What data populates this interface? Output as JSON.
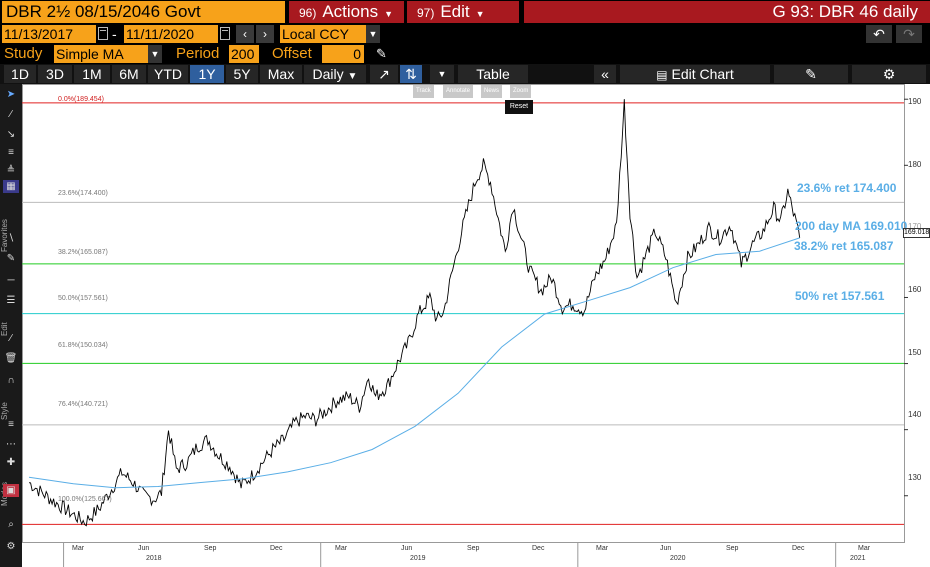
{
  "header": {
    "security": "DBR 2½ 08/15/2046 Govt",
    "actions_num": "96)",
    "actions_label": "Actions",
    "edit_num": "97)",
    "edit_label": "Edit",
    "function_title": "G 93: DBR 46 daily"
  },
  "range": {
    "start_date": "11/13/2017",
    "separator": "-",
    "end_date": "11/11/2020",
    "currency": "Local CCY"
  },
  "study": {
    "study_label": "Study",
    "study_value": "Simple MA",
    "period_label": "Period",
    "period_value": "200",
    "offset_label": "Offset",
    "offset_value": "0"
  },
  "toolbar": {
    "periods": [
      "1D",
      "3D",
      "1M",
      "6M",
      "YTD",
      "1Y",
      "5Y",
      "Max"
    ],
    "active_period": "1Y",
    "frequency": "Daily",
    "table_label": "Table",
    "edit_chart_label": "Edit Chart"
  },
  "chart_tools": {
    "track": "Track",
    "annotate": "Annotate",
    "news": "News",
    "zoom": "Zoom",
    "reset": "Reset"
  },
  "side_labels": {
    "favorites": "Favorites",
    "edit": "Edit",
    "style": "Style",
    "modes": "Modes"
  },
  "chart_data": {
    "type": "line",
    "y_axis_side": "right",
    "ylim": [
      123,
      192
    ],
    "y_ticks": [
      "190",
      "180",
      "170",
      "160",
      "150",
      "140",
      "130"
    ],
    "x_month_ticks": [
      "Mar",
      "Jun",
      "Sep",
      "Dec",
      "Mar",
      "Jun",
      "Sep",
      "Dec",
      "Mar",
      "Jun",
      "Sep",
      "Dec",
      "Mar"
    ],
    "x_year_ticks": [
      "2018",
      "2019",
      "2020",
      "2021"
    ],
    "last_price_label": "169.018",
    "fib_levels": [
      {
        "label": "0.0%(189.454)",
        "value": 189.454,
        "color": "#e02020"
      },
      {
        "label": "23.6%(174.400)",
        "value": 174.4,
        "color": "#bbbbbb"
      },
      {
        "label": "38.2%(165.087)",
        "value": 165.087,
        "color": "#22cc22"
      },
      {
        "label": "50.0%(157.561)",
        "value": 157.561,
        "color": "#22cccc"
      },
      {
        "label": "61.8%(150.034)",
        "value": 150.034,
        "color": "#22cc22"
      },
      {
        "label": "76.4%(140.721)",
        "value": 140.721,
        "color": "#bbbbbb"
      },
      {
        "label": "100.0%(125.667)",
        "value": 125.667,
        "color": "#e02020"
      }
    ],
    "annotations": [
      "23.6% ret 174.400",
      "200 day MA 169.010",
      "38.2% ret 165.087",
      "50% ret 157.561"
    ],
    "series": [
      {
        "name": "DBR 46 daily",
        "color": "#000000",
        "points": [
          [
            "2017-11-13",
            132.0
          ],
          [
            "2017-12-01",
            130.5
          ],
          [
            "2017-12-20",
            129.0
          ],
          [
            "2018-01-10",
            127.5
          ],
          [
            "2018-01-31",
            126.0
          ],
          [
            "2018-02-20",
            128.0
          ],
          [
            "2018-03-10",
            131.0
          ],
          [
            "2018-03-25",
            133.5
          ],
          [
            "2018-04-10",
            132.0
          ],
          [
            "2018-04-25",
            130.0
          ],
          [
            "2018-05-10",
            129.5
          ],
          [
            "2018-05-20",
            130.5
          ],
          [
            "2018-05-30",
            140.0
          ],
          [
            "2018-06-10",
            134.0
          ],
          [
            "2018-06-25",
            135.0
          ],
          [
            "2018-07-10",
            137.5
          ],
          [
            "2018-07-25",
            138.5
          ],
          [
            "2018-08-10",
            136.0
          ],
          [
            "2018-08-25",
            134.5
          ],
          [
            "2018-09-10",
            131.5
          ],
          [
            "2018-09-25",
            133.0
          ],
          [
            "2018-10-10",
            135.0
          ],
          [
            "2018-10-25",
            137.0
          ],
          [
            "2018-11-10",
            138.5
          ],
          [
            "2018-11-25",
            141.0
          ],
          [
            "2018-12-10",
            142.0
          ],
          [
            "2018-12-25",
            141.5
          ],
          [
            "2019-01-10",
            143.0
          ],
          [
            "2019-01-25",
            144.5
          ],
          [
            "2019-02-10",
            145.0
          ],
          [
            "2019-02-25",
            143.5
          ],
          [
            "2019-03-10",
            148.0
          ],
          [
            "2019-03-20",
            145.0
          ],
          [
            "2019-04-05",
            146.5
          ],
          [
            "2019-04-20",
            150.0
          ],
          [
            "2019-05-05",
            153.0
          ],
          [
            "2019-05-20",
            157.5
          ],
          [
            "2019-06-05",
            160.0
          ],
          [
            "2019-06-15",
            156.5
          ],
          [
            "2019-06-25",
            158.0
          ],
          [
            "2019-07-05",
            163.0
          ],
          [
            "2019-07-20",
            170.0
          ],
          [
            "2019-07-30",
            174.0
          ],
          [
            "2019-08-10",
            178.0
          ],
          [
            "2019-08-20",
            180.0
          ],
          [
            "2019-08-30",
            177.5
          ],
          [
            "2019-09-10",
            172.0
          ],
          [
            "2019-09-20",
            167.0
          ],
          [
            "2019-10-01",
            174.0
          ],
          [
            "2019-10-10",
            170.0
          ],
          [
            "2019-10-25",
            164.0
          ],
          [
            "2019-11-10",
            161.0
          ],
          [
            "2019-11-25",
            163.0
          ],
          [
            "2019-12-10",
            158.5
          ],
          [
            "2019-12-25",
            159.0
          ],
          [
            "2020-01-10",
            158.0
          ],
          [
            "2020-01-25",
            163.0
          ],
          [
            "2020-02-10",
            166.0
          ],
          [
            "2020-02-25",
            171.0
          ],
          [
            "2020-03-07",
            189.454
          ],
          [
            "2020-03-15",
            173.0
          ],
          [
            "2020-03-25",
            163.0
          ],
          [
            "2020-04-05",
            166.0
          ],
          [
            "2020-04-20",
            170.0
          ],
          [
            "2020-05-05",
            166.0
          ],
          [
            "2020-05-20",
            159.0
          ],
          [
            "2020-06-05",
            166.0
          ],
          [
            "2020-06-20",
            168.0
          ],
          [
            "2020-07-05",
            170.5
          ],
          [
            "2020-07-20",
            169.0
          ],
          [
            "2020-08-05",
            171.0
          ],
          [
            "2020-08-20",
            165.0
          ],
          [
            "2020-09-05",
            168.0
          ],
          [
            "2020-09-20",
            170.0
          ],
          [
            "2020-10-05",
            173.5
          ],
          [
            "2020-10-15",
            171.5
          ],
          [
            "2020-10-25",
            176.0
          ],
          [
            "2020-11-04",
            172.0
          ],
          [
            "2020-11-11",
            169.018
          ]
        ]
      },
      {
        "name": "200 day MA",
        "color": "#5aaee6",
        "points": [
          [
            "2017-11-13",
            132.8
          ],
          [
            "2018-01-15",
            131.8
          ],
          [
            "2018-03-15",
            131.2
          ],
          [
            "2018-05-15",
            131.4
          ],
          [
            "2018-07-15",
            132.0
          ],
          [
            "2018-09-15",
            132.6
          ],
          [
            "2018-11-15",
            133.6
          ],
          [
            "2019-01-15",
            135.0
          ],
          [
            "2019-03-15",
            137.0
          ],
          [
            "2019-05-15",
            140.5
          ],
          [
            "2019-07-15",
            145.5
          ],
          [
            "2019-09-15",
            152.5
          ],
          [
            "2019-11-15",
            157.5
          ],
          [
            "2020-01-15",
            159.5
          ],
          [
            "2020-03-15",
            161.5
          ],
          [
            "2020-05-15",
            164.5
          ],
          [
            "2020-07-15",
            166.5
          ],
          [
            "2020-09-15",
            167.0
          ],
          [
            "2020-11-11",
            169.01
          ]
        ]
      }
    ]
  }
}
